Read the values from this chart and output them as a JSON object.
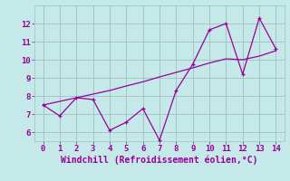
{
  "xlabel": "Windchill (Refroidissement éolien,°C)",
  "bg_color": "#c5e8e8",
  "grid_color": "#a0c0c0",
  "line_color": "#990099",
  "x_jagged": [
    0,
    1,
    2,
    3,
    4,
    5,
    6,
    7,
    8,
    9,
    10,
    11,
    12,
    13,
    14
  ],
  "y_jagged": [
    7.5,
    6.9,
    7.9,
    7.8,
    6.1,
    6.55,
    7.3,
    5.55,
    8.3,
    9.75,
    11.65,
    12.0,
    9.2,
    12.3,
    10.6
  ],
  "x_smooth": [
    0,
    2,
    3,
    4,
    5,
    6,
    7,
    8,
    9,
    10,
    11,
    12,
    13,
    14
  ],
  "y_smooth": [
    7.5,
    7.9,
    8.1,
    8.3,
    8.55,
    8.78,
    9.05,
    9.3,
    9.55,
    9.82,
    10.05,
    10.0,
    10.2,
    10.5
  ],
  "xlim": [
    -0.5,
    14.5
  ],
  "ylim": [
    5.5,
    13.0
  ],
  "xticks": [
    0,
    1,
    2,
    3,
    4,
    5,
    6,
    7,
    8,
    9,
    10,
    11,
    12,
    13,
    14
  ],
  "yticks": [
    6,
    7,
    8,
    9,
    10,
    11,
    12
  ],
  "tick_fontsize": 6.5,
  "xlabel_fontsize": 7.0
}
